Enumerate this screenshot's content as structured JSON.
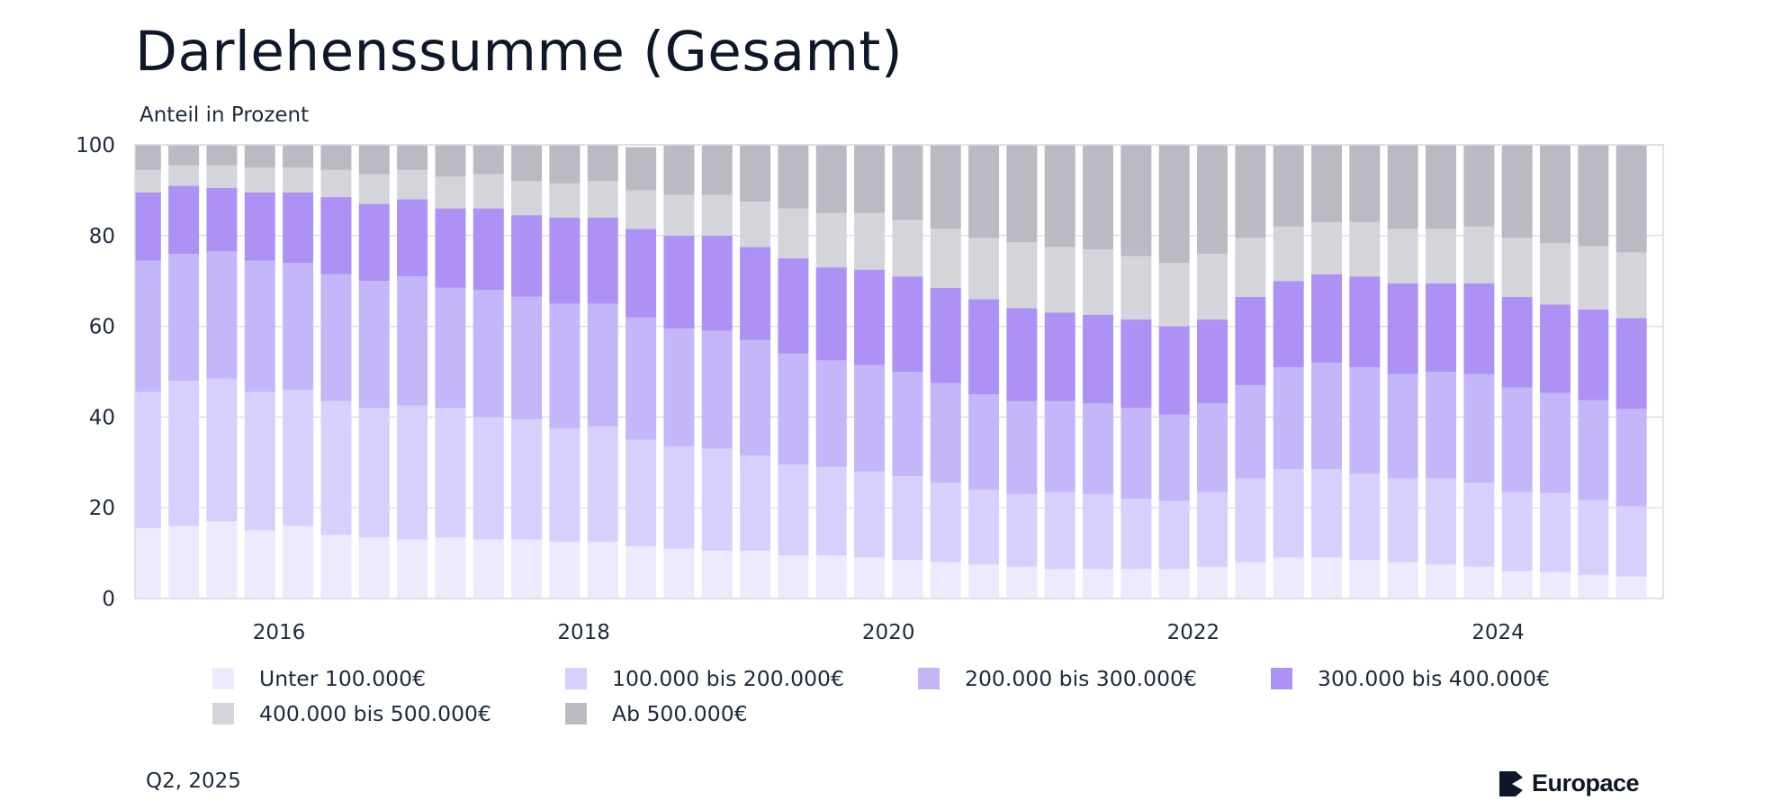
{
  "header": {
    "title": "Darlehenssumme (Gesamt)",
    "ylabel": "Anteil in Prozent"
  },
  "footer": {
    "date": "Q2, 2025",
    "brand": "Europace"
  },
  "colors": {
    "s1": "#eceafe",
    "s2": "#d8d0fc",
    "s3": "#c4b6f9",
    "s4": "#ae91f5",
    "s5": "#d4d5db",
    "s6": "#b9bac2",
    "grid": "#d9d9e0",
    "axis_text": "#1e293b",
    "logo": "#0f172a"
  },
  "chart_data": {
    "type": "bar",
    "stacked": true,
    "ylim": [
      0,
      100
    ],
    "yticks": [
      0,
      20,
      40,
      60,
      80,
      100
    ],
    "xticks": [
      "2016",
      "2018",
      "2020",
      "2022",
      "2024"
    ],
    "grid": true,
    "legend_position": "bottom",
    "categories": [
      "Q1 2015",
      "Q2 2015",
      "Q3 2015",
      "Q4 2015",
      "Q1 2016",
      "Q2 2016",
      "Q3 2016",
      "Q4 2016",
      "Q1 2017",
      "Q2 2017",
      "Q3 2017",
      "Q4 2017",
      "Q1 2018",
      "Q2 2018",
      "Q3 2018",
      "Q4 2018",
      "Q1 2019",
      "Q2 2019",
      "Q3 2019",
      "Q4 2019",
      "Q1 2020",
      "Q2 2020",
      "Q3 2020",
      "Q4 2020",
      "Q1 2021",
      "Q2 2021",
      "Q3 2021",
      "Q4 2021",
      "Q1 2022",
      "Q2 2022",
      "Q3 2022",
      "Q4 2022",
      "Q1 2023",
      "Q2 2023",
      "Q3 2023",
      "Q4 2023",
      "Q1 2024",
      "Q2 2024",
      "Q3 2024",
      "Q4 2024"
    ],
    "series": [
      {
        "name": "Unter 100.000€",
        "color": "#eceafe",
        "values": [
          15.5,
          16,
          17,
          15,
          16,
          14,
          13.5,
          13,
          13.5,
          13,
          13,
          12.5,
          12.5,
          11.5,
          11,
          10.5,
          10.5,
          9.5,
          9.5,
          9,
          8.5,
          8,
          7.5,
          7,
          6.5,
          6.5,
          6.5,
          6.5,
          7,
          8,
          9,
          9,
          8.5,
          8,
          7.5,
          7,
          6,
          5.8,
          5.2,
          4.8
        ]
      },
      {
        "name": "100.000 bis 200.000€",
        "color": "#d8d0fc",
        "values": [
          30,
          32,
          31.5,
          30.5,
          30,
          29.5,
          28.5,
          29.5,
          28.5,
          27,
          26.5,
          25,
          25.5,
          23.5,
          22.5,
          22.5,
          21,
          20,
          19.5,
          19,
          18.5,
          17.5,
          16.5,
          16,
          17,
          16.5,
          15.5,
          15,
          16.5,
          18.5,
          19.5,
          19.5,
          19,
          18.5,
          19,
          18.5,
          17.5,
          17.5,
          16.5,
          15.5
        ]
      },
      {
        "name": "200.000 bis 300.000€",
        "color": "#c4b6f9",
        "values": [
          29,
          28,
          28,
          29,
          28,
          28,
          28,
          28.5,
          26.5,
          28,
          27,
          27.5,
          27,
          27,
          26,
          26,
          25.5,
          24.5,
          23.5,
          23.5,
          23,
          22,
          21,
          20.5,
          20,
          20,
          20,
          19,
          19.5,
          20.5,
          22.5,
          23.5,
          23.5,
          23,
          23.5,
          24,
          23,
          22,
          22,
          21.5
        ]
      },
      {
        "name": "300.000 bis 400.000€",
        "color": "#ae91f5",
        "values": [
          15,
          15,
          14,
          15,
          15.5,
          17,
          17,
          17,
          17.5,
          18,
          18,
          19,
          19,
          19.5,
          20.5,
          21,
          20.5,
          21,
          20.5,
          21,
          21,
          21,
          21,
          20.5,
          19.5,
          19.5,
          19.5,
          19.5,
          18.5,
          19.5,
          19,
          19.5,
          20,
          20,
          19.5,
          20,
          20,
          19.5,
          20,
          20
        ]
      },
      {
        "name": "400.000 bis 500.000€",
        "color": "#d4d5db",
        "values": [
          5,
          4.5,
          5,
          5.5,
          5.5,
          6,
          6.5,
          6.5,
          7,
          7.5,
          7.5,
          7.5,
          8,
          8.5,
          9,
          9,
          10,
          11,
          12,
          12.5,
          12.5,
          13,
          13.5,
          14.5,
          14.5,
          14.5,
          14,
          14,
          14.5,
          13,
          12,
          11.5,
          12,
          12,
          12,
          12.5,
          13,
          13.5,
          14,
          14.5
        ]
      },
      {
        "name": "Ab 500.000€",
        "color": "#b9bac2",
        "values": [
          5.5,
          4.5,
          4.5,
          5,
          5,
          5.5,
          6.5,
          5.5,
          7,
          6.5,
          8,
          8.5,
          8,
          9.5,
          11,
          11,
          12.5,
          14,
          15,
          15,
          16.5,
          18.5,
          20.5,
          21.5,
          22.5,
          23,
          24.5,
          26,
          24,
          20.5,
          18,
          17,
          17,
          18.5,
          18.5,
          18,
          20.5,
          21.7,
          22.3,
          23.7
        ]
      }
    ]
  }
}
